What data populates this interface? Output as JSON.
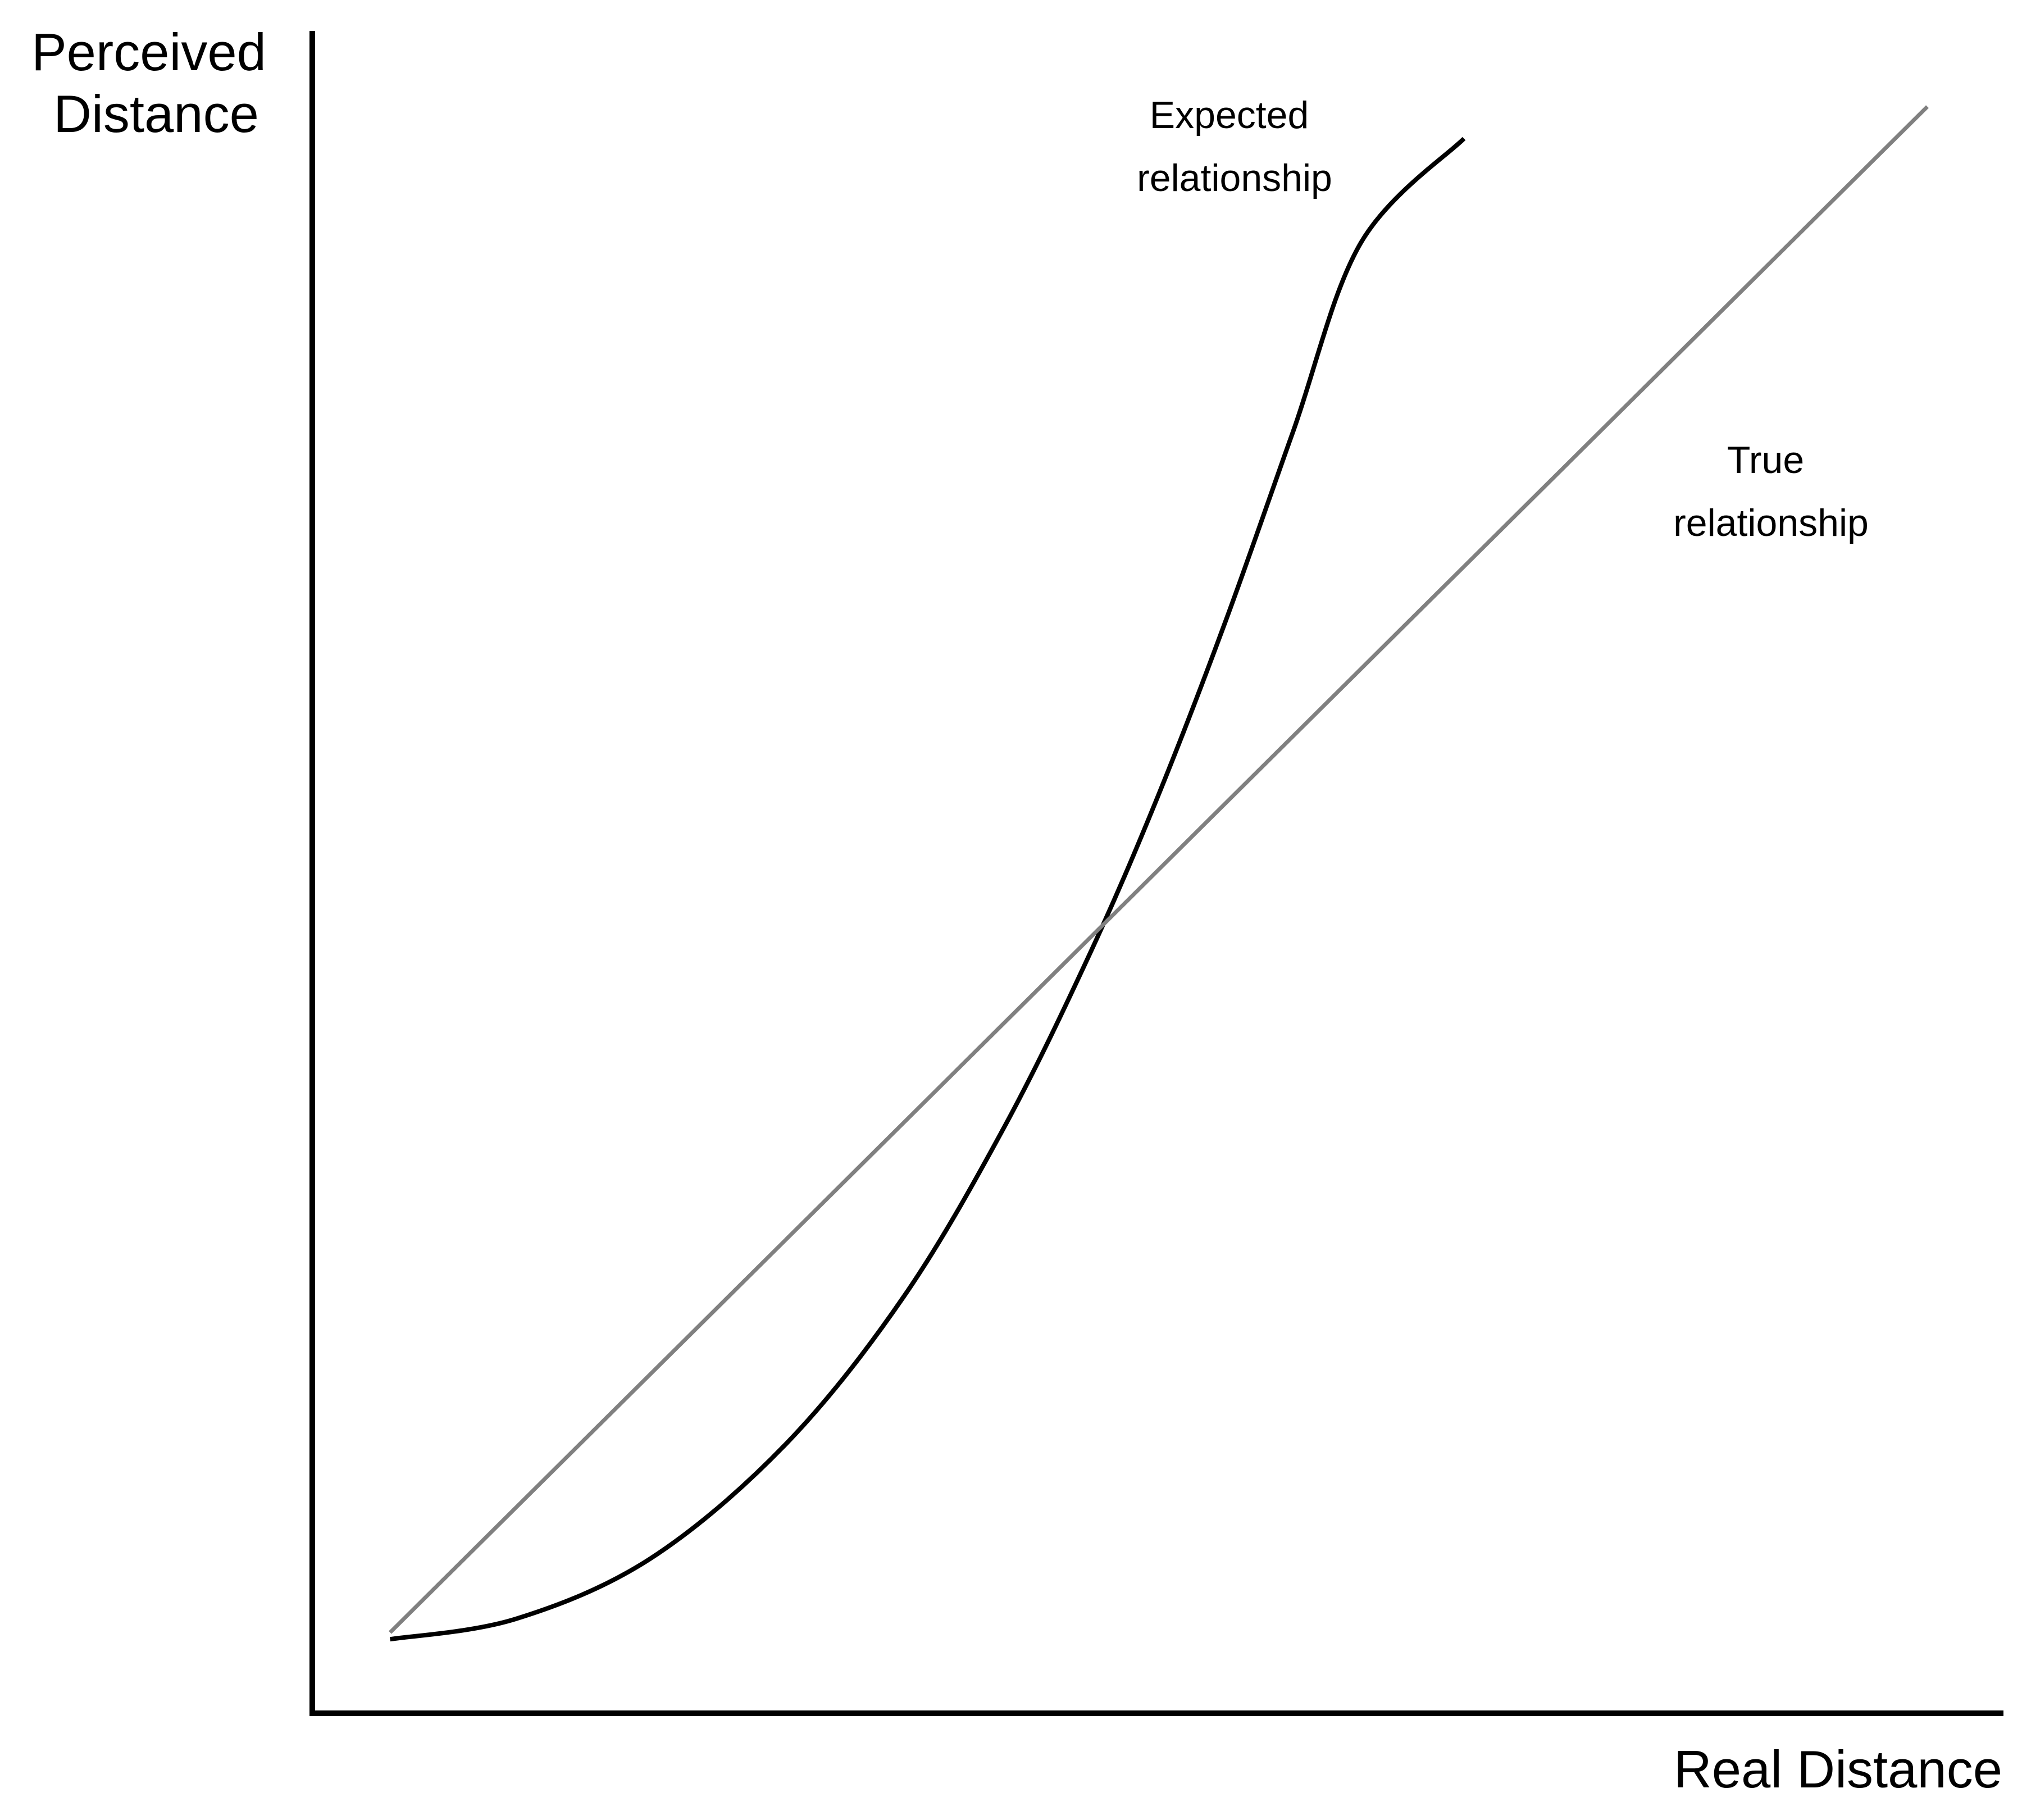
{
  "chart_data": {
    "type": "line",
    "title": "",
    "xlabel": "Real Distance",
    "ylabel_lines": [
      "Perceived",
      "Distance"
    ],
    "xlim": [
      0,
      1
    ],
    "ylim": [
      0,
      1
    ],
    "grid": false,
    "tick_labels": false,
    "series": [
      {
        "label_lines": [
          "Expected",
          "relationship"
        ],
        "color": "#000000",
        "points": [
          [
            0.046,
            0.044
          ],
          [
            0.12,
            0.056
          ],
          [
            0.2,
            0.092
          ],
          [
            0.28,
            0.16
          ],
          [
            0.35,
            0.248
          ],
          [
            0.41,
            0.35
          ],
          [
            0.46,
            0.452
          ],
          [
            0.5,
            0.545
          ],
          [
            0.54,
            0.649
          ],
          [
            0.58,
            0.762
          ],
          [
            0.62,
            0.874
          ],
          [
            0.681,
            0.936
          ]
        ]
      },
      {
        "label_lines": [
          "True",
          "relationship"
        ],
        "color": "#808080",
        "points": [
          [
            0.046,
            0.048
          ],
          [
            0.955,
            0.955
          ]
        ]
      }
    ]
  }
}
